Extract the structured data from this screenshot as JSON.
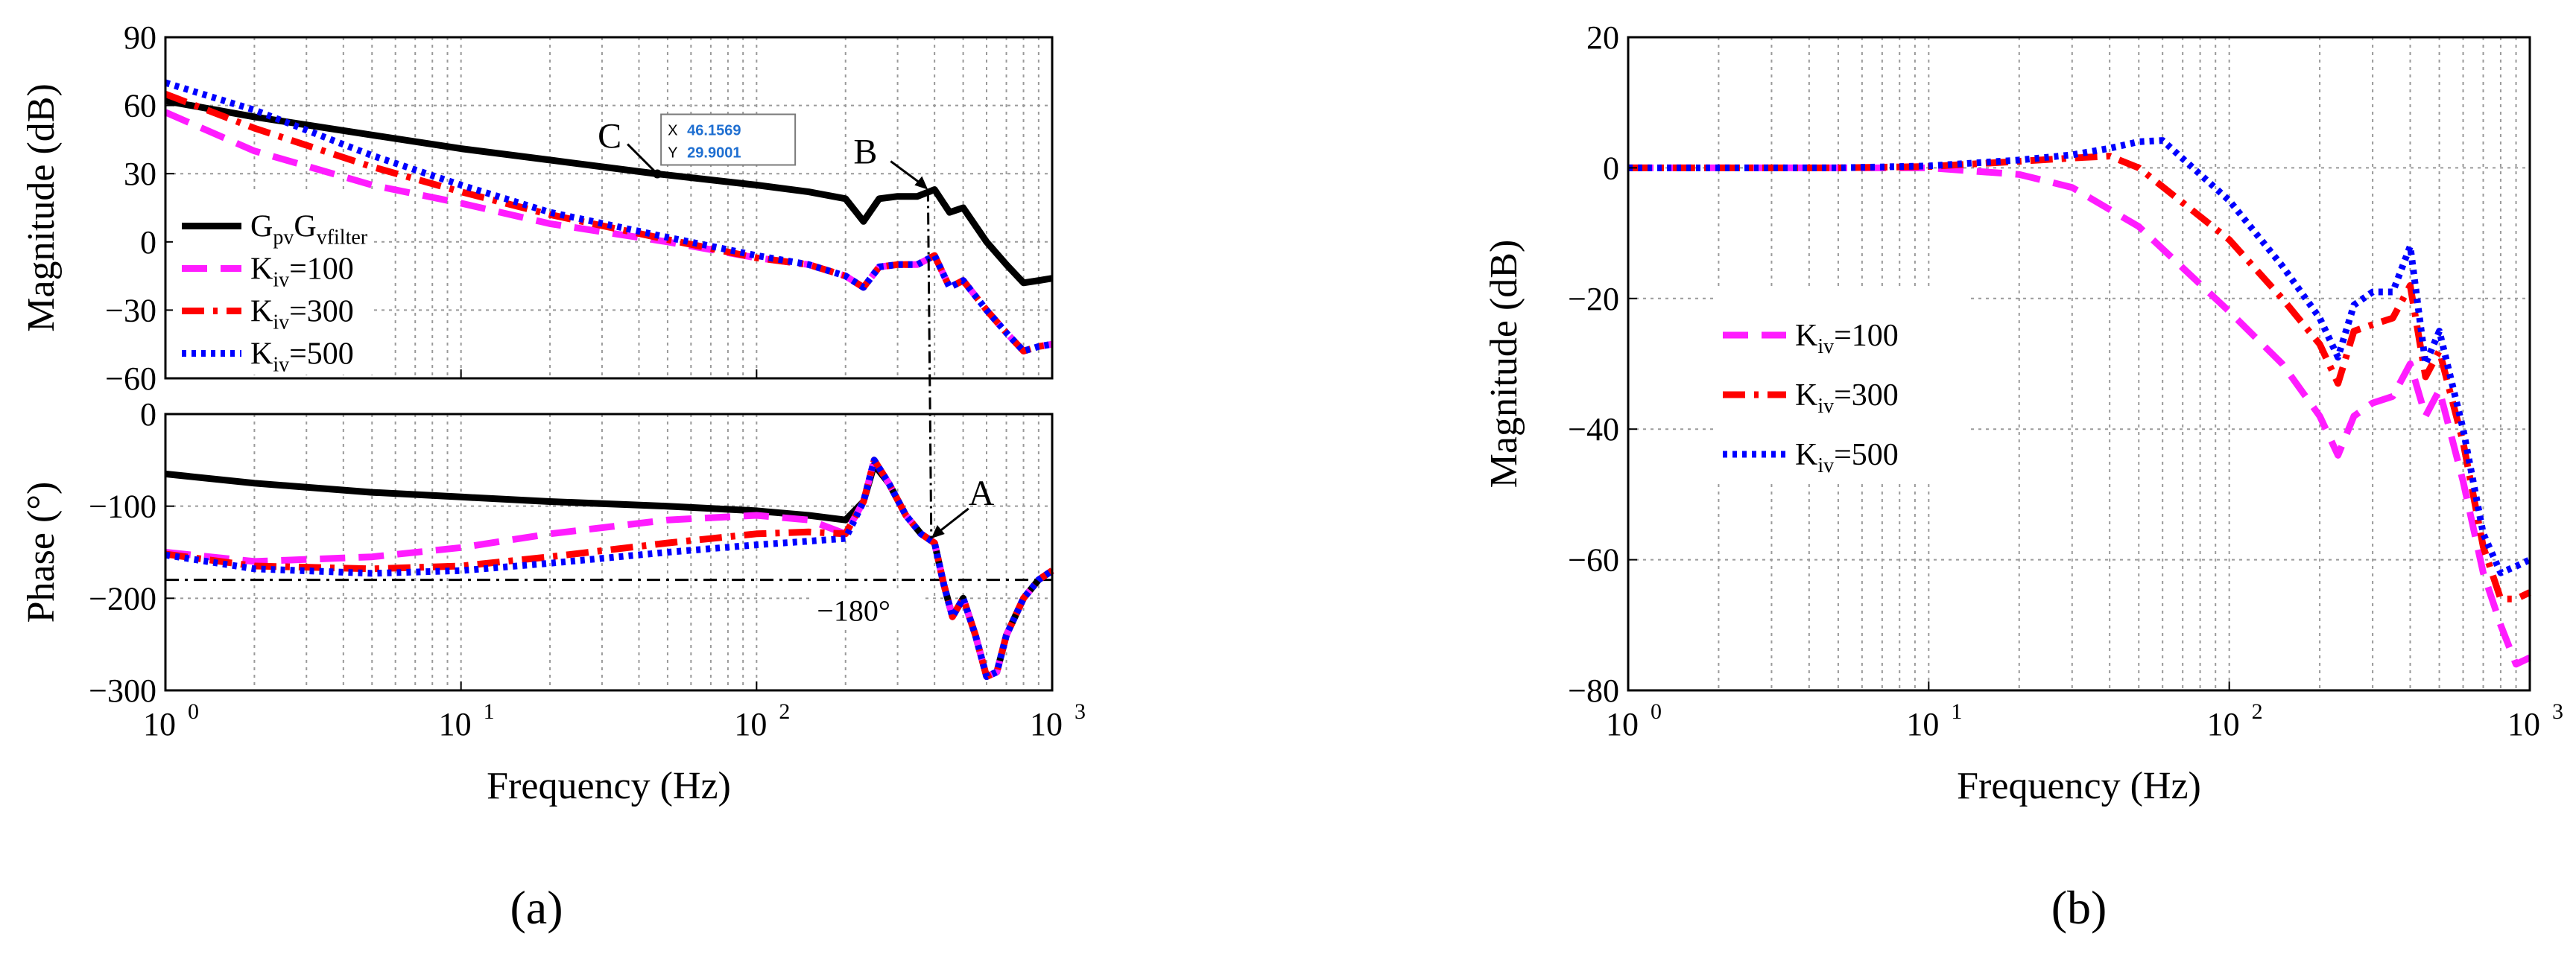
{
  "panels": [
    {
      "label": "(a)"
    },
    {
      "label": "(b)"
    }
  ],
  "chart_data": [
    {
      "type": "line",
      "panel": "a",
      "subplot": "magnitude",
      "xlabel": "",
      "ylabel": "Magnitude (dB)",
      "x_scale": "log",
      "xlim": [
        1,
        1000
      ],
      "ylim": [
        -60,
        90
      ],
      "yticks": [
        -60,
        -30,
        0,
        30,
        60,
        90
      ],
      "ytick_labels": [
        "−60",
        "−30",
        "0",
        "30",
        "60",
        "90"
      ],
      "grid": true,
      "legend_position": "left",
      "series": [
        {
          "name": "GpvGvfilter",
          "color": "#000000",
          "style": "solid",
          "x": [
            1,
            2,
            5,
            10,
            20,
            46.1569,
            100,
            150,
            200,
            230,
            260,
            300,
            350,
            400,
            450,
            500,
            600,
            700,
            800,
            900,
            1000
          ],
          "y": [
            62,
            55,
            47,
            41,
            36,
            29.9001,
            25,
            22,
            19,
            9,
            19,
            20,
            20,
            23,
            13,
            15,
            0,
            -10,
            -18,
            -17,
            -16
          ]
        },
        {
          "name": "Kiv=100",
          "color": "#ff1cff",
          "style": "dashed",
          "x": [
            1,
            2,
            5,
            10,
            20,
            50,
            100,
            150,
            200,
            230,
            260,
            300,
            350,
            400,
            450,
            500,
            600,
            700,
            800,
            900,
            1000
          ],
          "y": [
            57,
            40,
            25,
            17,
            8,
            0,
            -7,
            -10,
            -15,
            -20,
            -11,
            -10,
            -10,
            -6,
            -20,
            -17,
            -30,
            -40,
            -48,
            -46,
            -45
          ]
        },
        {
          "name": "Kiv=300",
          "color": "#ff0000",
          "style": "dashdot",
          "x": [
            1,
            2,
            5,
            10,
            20,
            50,
            100,
            150,
            200,
            230,
            260,
            300,
            350,
            400,
            450,
            500,
            600,
            700,
            800,
            900,
            1000
          ],
          "y": [
            65,
            50,
            33,
            22,
            12,
            1,
            -7,
            -10,
            -15,
            -20,
            -11,
            -10,
            -10,
            -6,
            -20,
            -17,
            -30,
            -40,
            -48,
            -46,
            -45
          ]
        },
        {
          "name": "Kiv=500",
          "color": "#0000ff",
          "style": "dotted",
          "x": [
            1,
            2,
            5,
            10,
            20,
            50,
            100,
            150,
            200,
            230,
            260,
            300,
            350,
            400,
            450,
            500,
            600,
            700,
            800,
            900,
            1000
          ],
          "y": [
            70,
            58,
            38,
            25,
            13,
            2,
            -6,
            -10,
            -15,
            -20,
            -11,
            -10,
            -10,
            -6,
            -20,
            -17,
            -30,
            -40,
            -48,
            -46,
            -45
          ]
        }
      ],
      "annotations": [
        {
          "text": "C",
          "x": 46.1569,
          "y": 29.9001
        },
        {
          "text": "B",
          "x": 380,
          "y": 23
        }
      ],
      "datatip": {
        "x_label": "X",
        "x_value": "46.1569",
        "y_label": "Y",
        "y_value": "29.9001"
      }
    },
    {
      "type": "line",
      "panel": "a",
      "subplot": "phase",
      "xlabel": "Frequency (Hz)",
      "ylabel": "Phase (°)",
      "x_scale": "log",
      "xlim": [
        1,
        1000
      ],
      "ylim": [
        -300,
        0
      ],
      "yticks": [
        -300,
        -200,
        -100,
        0
      ],
      "ytick_labels": [
        "−300",
        "−200",
        "−100",
        "0"
      ],
      "xtick_labels": [
        "10",
        "10",
        "10",
        "10"
      ],
      "xtick_exponents": [
        "0",
        "1",
        "2",
        "3"
      ],
      "grid": true,
      "series": [
        {
          "name": "GpvGvfilter",
          "color": "#000000",
          "style": "solid",
          "x": [
            1,
            2,
            5,
            10,
            20,
            50,
            100,
            150,
            200,
            230,
            250,
            280,
            320,
            360,
            400,
            430,
            460,
            500,
            550,
            600,
            650,
            700,
            800,
            900,
            1000
          ],
          "y": [
            -65,
            -75,
            -85,
            -90,
            -95,
            -100,
            -105,
            -110,
            -115,
            -95,
            -55,
            -75,
            -110,
            -130,
            -140,
            -185,
            -220,
            -200,
            -240,
            -285,
            -280,
            -240,
            -200,
            -180,
            -170
          ]
        },
        {
          "name": "Kiv=100",
          "color": "#ff1cff",
          "style": "dashed",
          "x": [
            1,
            2,
            5,
            10,
            20,
            50,
            100,
            150,
            200,
            230,
            250,
            280,
            320,
            360,
            400,
            430,
            460,
            500,
            550,
            600,
            650,
            700,
            800,
            900,
            1000
          ],
          "y": [
            -150,
            -160,
            -155,
            -145,
            -130,
            -115,
            -110,
            -115,
            -130,
            -95,
            -50,
            -75,
            -110,
            -130,
            -140,
            -185,
            -220,
            -200,
            -240,
            -285,
            -280,
            -240,
            -200,
            -180,
            -170
          ]
        },
        {
          "name": "Kiv=300",
          "color": "#ff0000",
          "style": "dashdot",
          "x": [
            1,
            2,
            5,
            10,
            20,
            50,
            100,
            150,
            200,
            230,
            250,
            280,
            320,
            360,
            400,
            430,
            460,
            500,
            550,
            600,
            650,
            700,
            800,
            900,
            1000
          ],
          "y": [
            -152,
            -165,
            -168,
            -165,
            -155,
            -140,
            -130,
            -128,
            -130,
            -95,
            -50,
            -75,
            -110,
            -130,
            -140,
            -185,
            -220,
            -200,
            -240,
            -285,
            -280,
            -240,
            -200,
            -180,
            -170
          ]
        },
        {
          "name": "Kiv=500",
          "color": "#0000ff",
          "style": "dotted",
          "x": [
            1,
            2,
            5,
            10,
            20,
            50,
            100,
            150,
            200,
            230,
            250,
            280,
            320,
            360,
            400,
            430,
            460,
            500,
            550,
            600,
            650,
            700,
            800,
            900,
            1000
          ],
          "y": [
            -153,
            -168,
            -173,
            -170,
            -162,
            -150,
            -142,
            -138,
            -135,
            -95,
            -50,
            -75,
            -110,
            -130,
            -140,
            -185,
            -220,
            -200,
            -240,
            -285,
            -280,
            -240,
            -200,
            -180,
            -170
          ]
        }
      ],
      "annotations": [
        {
          "text": "A",
          "x": 390,
          "y": -135
        },
        {
          "text": "−180°",
          "x": 160,
          "y": -180
        }
      ],
      "reference_line": {
        "y": -180
      }
    },
    {
      "type": "line",
      "panel": "b",
      "xlabel": "Frequency (Hz)",
      "ylabel": "Magnitude (dB)",
      "x_scale": "log",
      "xlim": [
        1,
        1000
      ],
      "ylim": [
        -80,
        20
      ],
      "yticks": [
        -80,
        -60,
        -40,
        -20,
        0,
        20
      ],
      "ytick_labels": [
        "−80",
        "−60",
        "−40",
        "−20",
        "0",
        "20"
      ],
      "xtick_labels": [
        "10",
        "10",
        "10",
        "10"
      ],
      "xtick_exponents": [
        "0",
        "1",
        "2",
        "3"
      ],
      "grid": true,
      "legend_position": "left",
      "series": [
        {
          "name": "Kiv=100",
          "color": "#ff1cff",
          "style": "dashed",
          "x": [
            1,
            2,
            5,
            10,
            20,
            30,
            50,
            100,
            150,
            200,
            230,
            260,
            300,
            350,
            400,
            450,
            500,
            600,
            700,
            800,
            900,
            1000
          ],
          "y": [
            0,
            0,
            0,
            0,
            -1,
            -3,
            -9,
            -22,
            -30,
            -38,
            -44,
            -38,
            -36,
            -35,
            -30,
            -38,
            -34,
            -48,
            -62,
            -70,
            -76,
            -75
          ]
        },
        {
          "name": "Kiv=300",
          "color": "#ff0000",
          "style": "dashdot",
          "x": [
            1,
            2,
            5,
            10,
            20,
            30,
            40,
            50,
            100,
            150,
            200,
            230,
            260,
            300,
            350,
            400,
            450,
            500,
            600,
            700,
            800,
            900,
            1000
          ],
          "y": [
            0,
            0,
            0,
            0.2,
            1,
            1.5,
            1.8,
            0,
            -11,
            -20,
            -27,
            -33,
            -25,
            -24,
            -23,
            -18,
            -32,
            -28,
            -42,
            -58,
            -66,
            -66,
            -65
          ]
        },
        {
          "name": "Kiv=500",
          "color": "#0000ff",
          "style": "dotted",
          "x": [
            1,
            2,
            5,
            10,
            20,
            30,
            40,
            50,
            60,
            100,
            150,
            200,
            230,
            260,
            300,
            350,
            400,
            450,
            500,
            600,
            700,
            800,
            900,
            1000
          ],
          "y": [
            0,
            0,
            0,
            0.3,
            1.2,
            2,
            3,
            4,
            4.2,
            -5,
            -15,
            -23,
            -29,
            -21,
            -19,
            -19,
            -12,
            -30,
            -25,
            -40,
            -56,
            -62,
            -61,
            -60
          ]
        }
      ]
    }
  ]
}
